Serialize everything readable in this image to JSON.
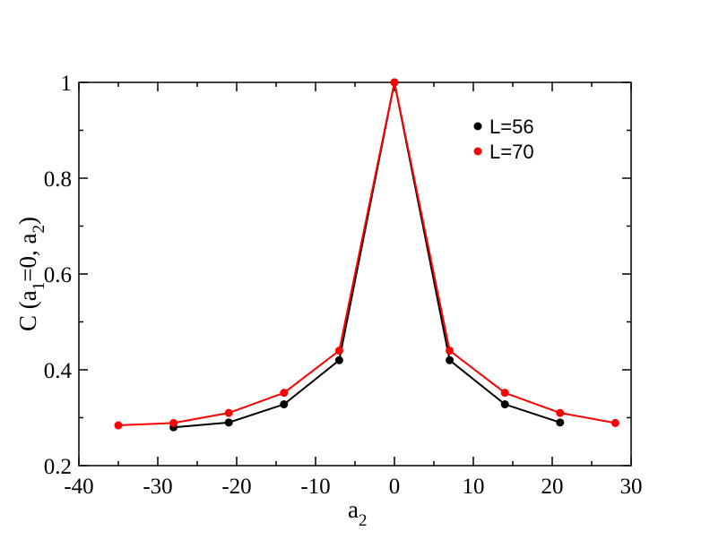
{
  "chart_data": {
    "type": "line",
    "title": "",
    "xlabel": {
      "main": "a",
      "sub": "2"
    },
    "ylabel": {
      "p1": "C (a",
      "s1": "1",
      "p2": "=0, a",
      "s2": "2",
      "p3": ")"
    },
    "xlim": [
      -40,
      30
    ],
    "ylim": [
      0.2,
      1.0
    ],
    "xticks": [
      -40,
      -30,
      -20,
      -10,
      0,
      10,
      20,
      30
    ],
    "xtick_labels": [
      "-40",
      "-30",
      "-20",
      "-10",
      "0",
      "10",
      "20",
      "30"
    ],
    "yticks": [
      0.2,
      0.4,
      0.6,
      0.8,
      1.0
    ],
    "ytick_labels": [
      "0.2",
      "0.4",
      "0.6",
      "0.8",
      "1"
    ],
    "grid": false,
    "legend_position": "top-right",
    "series": [
      {
        "name": "L=56",
        "color": "#000000",
        "x": [
          -28,
          -21,
          -14,
          -7,
          0,
          7,
          14,
          21
        ],
        "y": [
          0.28,
          0.29,
          0.328,
          0.42,
          1.0,
          0.42,
          0.328,
          0.29
        ]
      },
      {
        "name": "L=70",
        "color": "#ff0000",
        "x": [
          -35,
          -28,
          -21,
          -14,
          -7,
          0,
          7,
          14,
          21,
          28
        ],
        "y": [
          0.284,
          0.289,
          0.31,
          0.352,
          0.44,
          1.0,
          0.44,
          0.352,
          0.31,
          0.289
        ]
      }
    ]
  }
}
